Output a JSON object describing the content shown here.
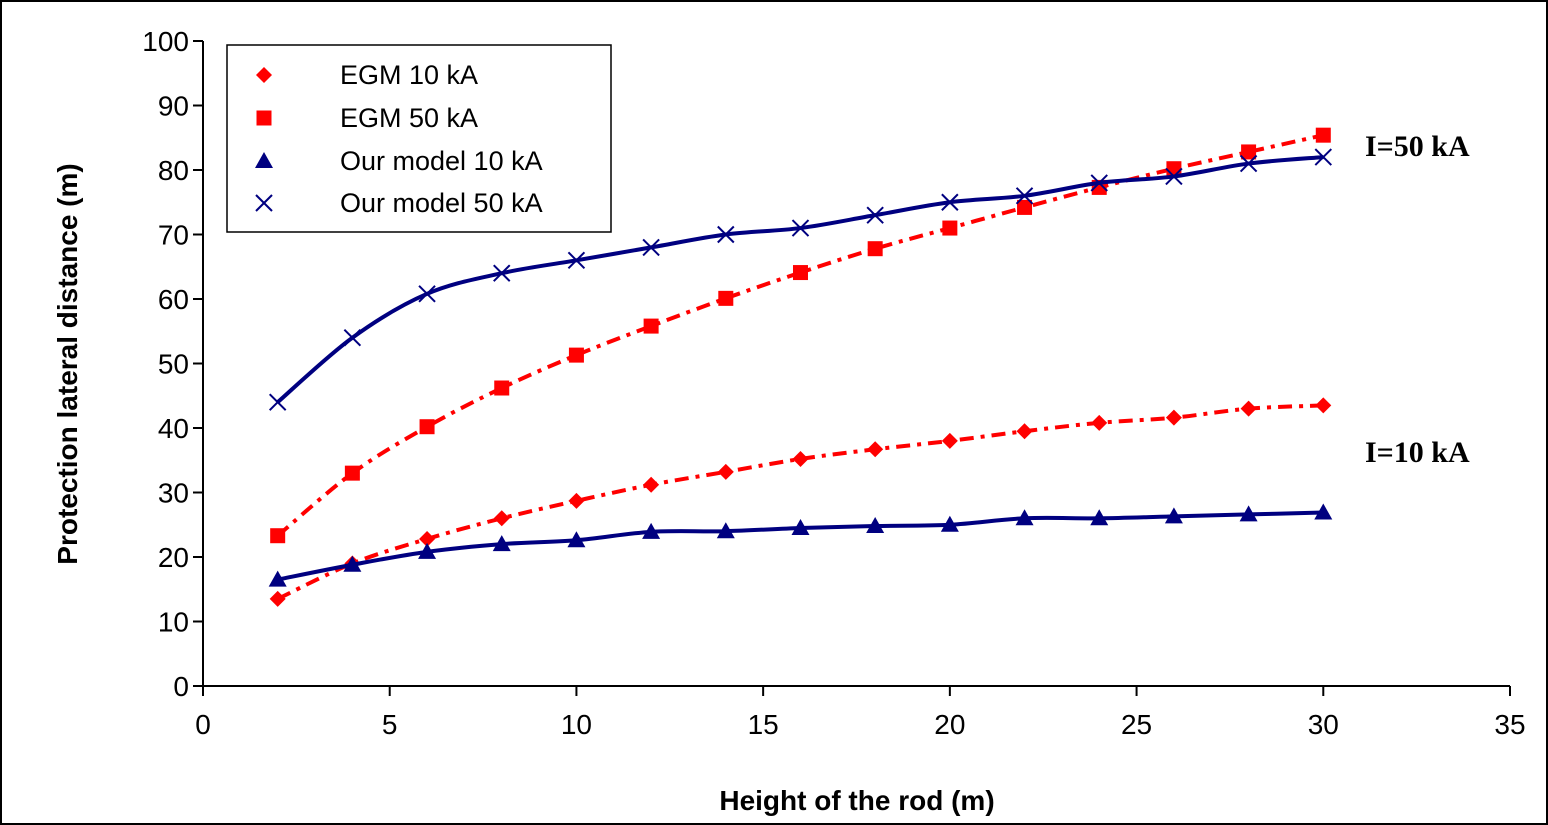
{
  "chart_data": {
    "type": "line",
    "title": "",
    "xlabel": "Height of the rod (m)",
    "ylabel": "Protection lateral distance (m)",
    "xlim": [
      0,
      35
    ],
    "ylim": [
      0,
      100
    ],
    "xticks": [
      0,
      5,
      10,
      15,
      20,
      25,
      30,
      35
    ],
    "yticks": [
      0,
      10,
      20,
      30,
      40,
      50,
      60,
      70,
      80,
      90,
      100
    ],
    "grid": false,
    "legend_position": "top-left",
    "x": [
      2,
      4,
      6,
      8,
      10,
      12,
      14,
      16,
      18,
      20,
      22,
      24,
      26,
      28,
      30
    ],
    "series": [
      {
        "name": "EGM 10 kA",
        "marker": "diamond",
        "color": "#ff0000",
        "line": "dash-dot",
        "values": [
          13.5,
          19,
          22.8,
          26,
          28.7,
          31.2,
          33.2,
          35.2,
          36.7,
          38,
          39.5,
          40.8,
          41.6,
          43,
          43.5
        ]
      },
      {
        "name": "EGM 50 kA",
        "marker": "square",
        "color": "#ff0000",
        "line": "dash-dot",
        "values": [
          23.3,
          33,
          40.2,
          46.2,
          51.3,
          55.8,
          60.1,
          64.1,
          67.8,
          71,
          74.2,
          77.3,
          80.2,
          82.8,
          85.4
        ]
      },
      {
        "name": "Our model 10 kA",
        "marker": "triangle",
        "color": "#000080",
        "line": "solid",
        "values": [
          16.5,
          18.8,
          20.8,
          22,
          22.6,
          23.9,
          24,
          24.5,
          24.8,
          25,
          26,
          26,
          26.3,
          26.6,
          26.9
        ]
      },
      {
        "name": "Our model 50 kA",
        "marker": "x",
        "color": "#000080",
        "line": "solid",
        "values": [
          44,
          54,
          60.8,
          64,
          66,
          68,
          70,
          71,
          73,
          75,
          76,
          78,
          79,
          81,
          82
        ]
      }
    ],
    "annotations": [
      "I=50 kA",
      "I=10 kA"
    ]
  }
}
